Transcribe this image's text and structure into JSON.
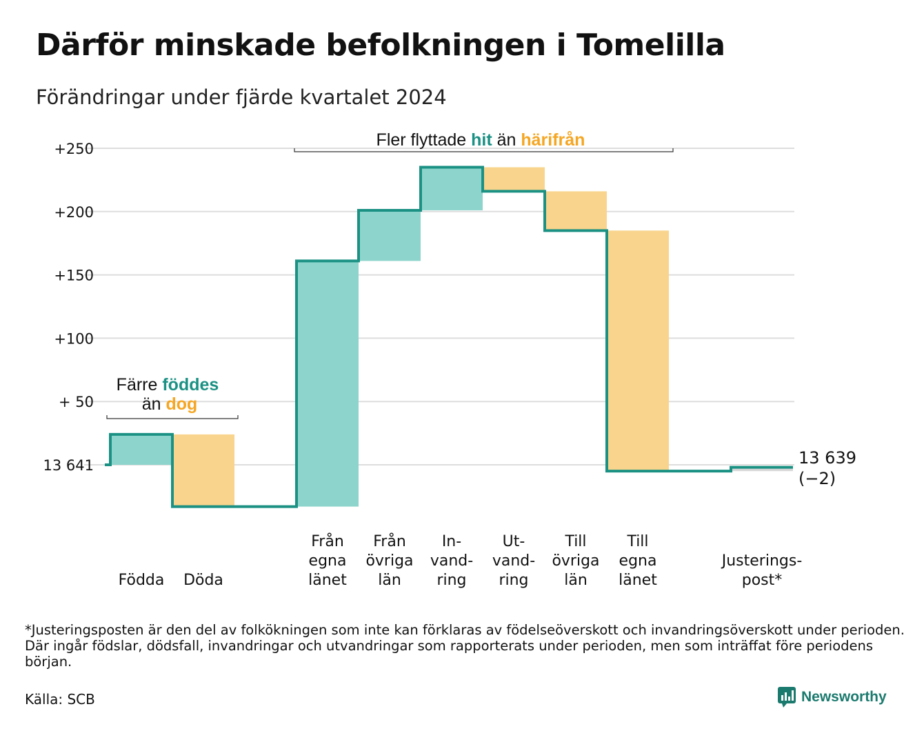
{
  "title": "Därför minskade befolkningen i Tomelilla",
  "subtitle": "Förändringar under fjärde kvartalet 2024",
  "colors": {
    "in": "#8dd5cc",
    "out": "#f9d48c",
    "line": "#1b9184",
    "teal_text": "#1b9184",
    "orange_text": "#f5a623",
    "grid": "#dddddd",
    "adjust": "#d8d8d8"
  },
  "chart_data": {
    "type": "waterfall",
    "title": "Därför minskade befolkningen i Tomelilla",
    "subtitle": "Förändringar under fjärde kvartalet 2024",
    "start": 13641,
    "end": 13639,
    "yticks": [
      {
        "value": 250,
        "label": "+250"
      },
      {
        "value": 200,
        "label": "+200"
      },
      {
        "value": 150,
        "label": "+150"
      },
      {
        "value": 100,
        "label": "+100"
      },
      {
        "value": 50,
        "label": "+ 50"
      },
      {
        "value": 0,
        "label": "13 641"
      }
    ],
    "ylim": [
      -40,
      250
    ],
    "steps": [
      {
        "label": [
          "Födda"
        ],
        "value": 24,
        "kind": "in"
      },
      {
        "label": [
          "Döda"
        ],
        "value": -57,
        "kind": "out"
      },
      {
        "label": [],
        "value": 0,
        "kind": "gap"
      },
      {
        "label": [
          "Från",
          "egna",
          "länet"
        ],
        "value": 194,
        "kind": "in"
      },
      {
        "label": [
          "Från",
          "övriga",
          "län"
        ],
        "value": 40,
        "kind": "in"
      },
      {
        "label": [
          "In-",
          "vand-",
          "ring"
        ],
        "value": 34,
        "kind": "in"
      },
      {
        "label": [
          "Ut-",
          "vand-",
          "ring"
        ],
        "value": -19,
        "kind": "out"
      },
      {
        "label": [
          "Till",
          "övriga",
          "län"
        ],
        "value": -31,
        "kind": "out"
      },
      {
        "label": [
          "Till",
          "egna",
          "länet"
        ],
        "value": -190,
        "kind": "out"
      },
      {
        "label": [],
        "value": 0,
        "kind": "gap"
      },
      {
        "label": [
          "Justerings-",
          "post*"
        ],
        "value": 3,
        "kind": "adjust"
      }
    ],
    "end_label": [
      "13 639",
      "(−2)"
    ],
    "annotation_births": {
      "line1_a": "Färre ",
      "line1_b": "föddes",
      "line2_a": "än ",
      "line2_b": "dog"
    },
    "annotation_moves": {
      "a": "Fler flyttade ",
      "b": "hit",
      "c": " än ",
      "d": "härifrån"
    }
  },
  "footnote": "*Justeringsposten är den del av folkökningen som inte kan förklaras av födelseöverskott och invandringsöverskott under perioden. Där ingår födslar, dödsfall, invandringar och utvandringar som rapporterats under perioden, men som inträffat före periodens början.",
  "source": "Källa: SCB",
  "brand": "Newsworthy",
  "brand_icon": "bar-chart-speech-icon"
}
